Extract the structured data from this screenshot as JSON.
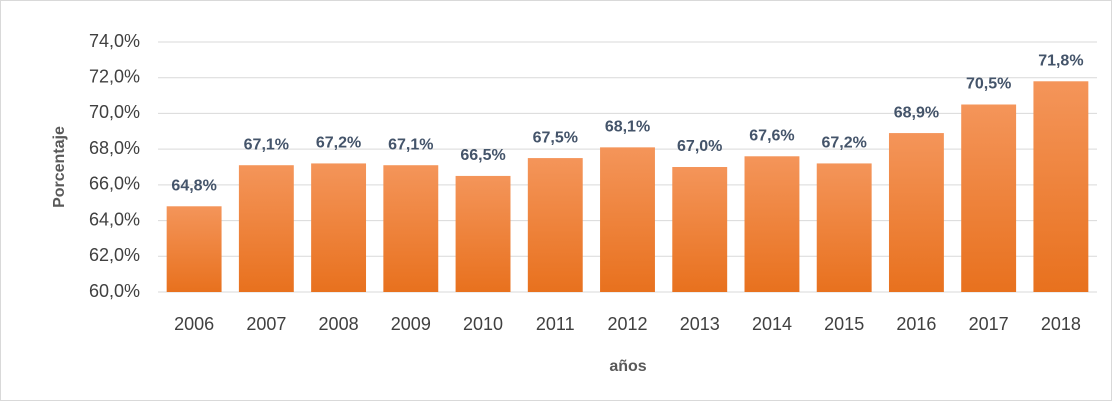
{
  "chart_data": {
    "type": "bar",
    "x_label": "años",
    "y_label": "Porcentaje",
    "categories": [
      "2006",
      "2007",
      "2008",
      "2009",
      "2010",
      "2011",
      "2012",
      "2013",
      "2014",
      "2015",
      "2016",
      "2017",
      "2018"
    ],
    "values": [
      64.8,
      67.1,
      67.2,
      67.1,
      66.5,
      67.5,
      68.1,
      67.0,
      67.6,
      67.2,
      68.9,
      70.5,
      71.8
    ],
    "value_labels": [
      "64,8%",
      "67,1%",
      "67,2%",
      "67,1%",
      "66,5%",
      "67,5%",
      "68,1%",
      "67,0%",
      "67,6%",
      "67,2%",
      "68,9%",
      "70,5%",
      "71,8%"
    ],
    "color": "#ed7d31",
    "ylim": [
      60,
      74
    ],
    "yticks": [
      {
        "value": 60,
        "label": "60,0%"
      },
      {
        "value": 62,
        "label": "62,0%"
      },
      {
        "value": 64,
        "label": "64,0%"
      },
      {
        "value": 66,
        "label": "66,0%"
      },
      {
        "value": 68,
        "label": "68,0%"
      },
      {
        "value": 70,
        "label": "70,0%"
      },
      {
        "value": 72,
        "label": "72,0%"
      },
      {
        "value": 74,
        "label": "74,0%"
      }
    ],
    "grid": true
  }
}
